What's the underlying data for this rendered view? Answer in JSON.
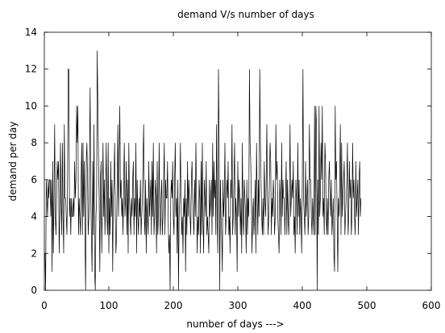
{
  "chart_data": {
    "type": "line",
    "title": "demand V/s number of days",
    "xlabel": "number of days --->",
    "ylabel": "demand per day",
    "xlim": [
      0,
      600
    ],
    "ylim": [
      0,
      14
    ],
    "xticks": [
      0,
      100,
      200,
      300,
      400,
      500,
      600
    ],
    "yticks": [
      0,
      2,
      4,
      6,
      8,
      10,
      12,
      14
    ],
    "xtick_labels": [
      "0",
      "100",
      "200",
      "300",
      "400",
      "500",
      "600"
    ],
    "ytick_labels": [
      "0",
      "2",
      "4",
      "6",
      "8",
      "10",
      "12",
      "14"
    ],
    "grid": false,
    "legend": "none",
    "line_color": "#000000",
    "series": [
      {
        "x_start": 1,
        "x_step": 1,
        "values": [
          2,
          0,
          6,
          5,
          4,
          6,
          5,
          6,
          6,
          4,
          6,
          1,
          7,
          2,
          5,
          9,
          4,
          3,
          5,
          7,
          6,
          7,
          2,
          4,
          8,
          5,
          3,
          8,
          4,
          2,
          9,
          5,
          5,
          4,
          3,
          6,
          12,
          12,
          4,
          5,
          3,
          5,
          4,
          4,
          5,
          4,
          7,
          5,
          6,
          10,
          8,
          10,
          3,
          5,
          4,
          3,
          6,
          8,
          3,
          8,
          4,
          7,
          3,
          0,
          7,
          8,
          6,
          3,
          4,
          7,
          11,
          5,
          3,
          1,
          7,
          3,
          9,
          1,
          0,
          4,
          5,
          13,
          10,
          7,
          5,
          1,
          6,
          7,
          2,
          5,
          8,
          4,
          6,
          3,
          5,
          8,
          4,
          3,
          8,
          2,
          5,
          3,
          7,
          4,
          6,
          1,
          5,
          6,
          8,
          4,
          2,
          3,
          6,
          9,
          4,
          7,
          10,
          5,
          6,
          4,
          5,
          3,
          6,
          8,
          4,
          5,
          7,
          3,
          6,
          2,
          8,
          5,
          4,
          3,
          5,
          4,
          6,
          7,
          3,
          5,
          4,
          8,
          2,
          6,
          4,
          3,
          5,
          4,
          6,
          3,
          4,
          5,
          7,
          9,
          4,
          3,
          6,
          2,
          5,
          4,
          3,
          7,
          4,
          5,
          6,
          3,
          7,
          4,
          8,
          3,
          4,
          6,
          5,
          2,
          7,
          3,
          4,
          8,
          4,
          3,
          5,
          6,
          3,
          4,
          6,
          8,
          3,
          6,
          5,
          5,
          7,
          4,
          2,
          3,
          0,
          5,
          6,
          5,
          7,
          4,
          3,
          6,
          8,
          4,
          5,
          2,
          6,
          0,
          4,
          5,
          8,
          5,
          3,
          4,
          2,
          5,
          4,
          6,
          1,
          5,
          3,
          7,
          4,
          6,
          5,
          4,
          3,
          6,
          7,
          5,
          4,
          3,
          6,
          4,
          8,
          5,
          2,
          4,
          3,
          6,
          5,
          2,
          7,
          3,
          8,
          4,
          2,
          6,
          5,
          4,
          7,
          3,
          4,
          3,
          2,
          6,
          4,
          5,
          6,
          3,
          8,
          4,
          7,
          5,
          6,
          3,
          9,
          4,
          2,
          12,
          8,
          0,
          6,
          4,
          3,
          1,
          6,
          4,
          5,
          8,
          3,
          4,
          6,
          5,
          7,
          3,
          4,
          2,
          6,
          5,
          9,
          3,
          4,
          6,
          8,
          3,
          5,
          4,
          1,
          7,
          4,
          6,
          5,
          3,
          5,
          2,
          8,
          4,
          3,
          6,
          5,
          4,
          2,
          6,
          3,
          5,
          4,
          12,
          8,
          7,
          5,
          2,
          4,
          5,
          3,
          4,
          6,
          2,
          8,
          5,
          3,
          6,
          4,
          12,
          8,
          6,
          4,
          3,
          5,
          3,
          7,
          5,
          4,
          6,
          9,
          5,
          3,
          4,
          6,
          8,
          7,
          3,
          5,
          4,
          6,
          5,
          3,
          4,
          9,
          6,
          7,
          4,
          3,
          2,
          6,
          5,
          3,
          8,
          4,
          6,
          5,
          5,
          3,
          5,
          7,
          3,
          6,
          4,
          3,
          5,
          9,
          4,
          5,
          6,
          5,
          7,
          3,
          4,
          2,
          6,
          5,
          3,
          8,
          4,
          6,
          3,
          5,
          4,
          2,
          6,
          12,
          5,
          4,
          3,
          7,
          4,
          5,
          6,
          3,
          4,
          9,
          6,
          6,
          4,
          3,
          5,
          4,
          3,
          10,
          3,
          10,
          9,
          0,
          6,
          3,
          10,
          4,
          5,
          8,
          6,
          10,
          4,
          5,
          3,
          8,
          7,
          4,
          3,
          5,
          3,
          6,
          7,
          5,
          4,
          6,
          3,
          4,
          5,
          2,
          1,
          10,
          6,
          7,
          4,
          1,
          5,
          4,
          6,
          9,
          3,
          8,
          4,
          5,
          6,
          7,
          3,
          4,
          5,
          6,
          8,
          3,
          4,
          7,
          5,
          6,
          3,
          4,
          8,
          5,
          6,
          4,
          3,
          7,
          4,
          5,
          6,
          3,
          6,
          7,
          4,
          5
        ]
      }
    ]
  }
}
